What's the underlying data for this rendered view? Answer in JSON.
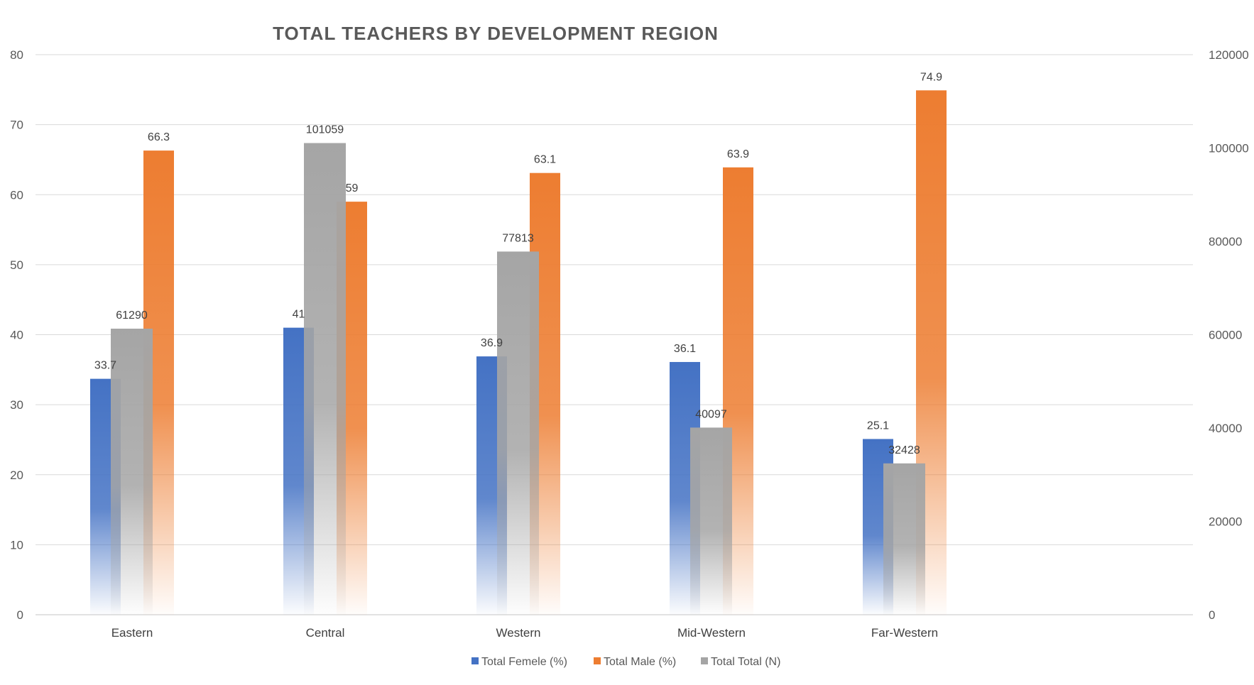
{
  "chart_data": {
    "type": "bar",
    "title": "TOTAL TEACHERS BY DEVELOPMENT REGION",
    "categories": [
      "Eastern",
      "Central",
      "Western",
      "Mid-Western",
      "Far-Western"
    ],
    "series": [
      {
        "name": "Total Femele (%)",
        "axis": "primary",
        "values": [
          33.7,
          41,
          36.9,
          36.1,
          25.1
        ],
        "labels": [
          "33.7",
          "41",
          "36.9",
          "36.1",
          "25.1"
        ]
      },
      {
        "name": "Total Male (%)",
        "axis": "primary",
        "values": [
          66.3,
          59,
          63.1,
          63.9,
          74.9
        ],
        "labels": [
          "66.3",
          "59",
          "63.1",
          "63.9",
          "74.9"
        ]
      },
      {
        "name": "Total Total (N)",
        "axis": "secondary",
        "values": [
          61290,
          101059,
          77813,
          40097,
          32428
        ],
        "labels": [
          "61290",
          "101059",
          "77813",
          "40097",
          "32428"
        ]
      }
    ],
    "y_axis": {
      "min": 0,
      "max": 80,
      "ticks": [
        "0",
        "10",
        "20",
        "30",
        "40",
        "50",
        "60",
        "70",
        "80"
      ]
    },
    "y2_axis": {
      "min": 0,
      "max": 120000,
      "ticks": [
        "0",
        "20000",
        "40000",
        "60000",
        "80000",
        "100000",
        "120000"
      ]
    },
    "grid": true,
    "legend_position": "bottom",
    "colors": {
      "female": "#4472c4",
      "male": "#ed7d31",
      "total": "#a5a5a5",
      "gridline": "#d9d9d9",
      "axis_text": "#595959"
    }
  }
}
